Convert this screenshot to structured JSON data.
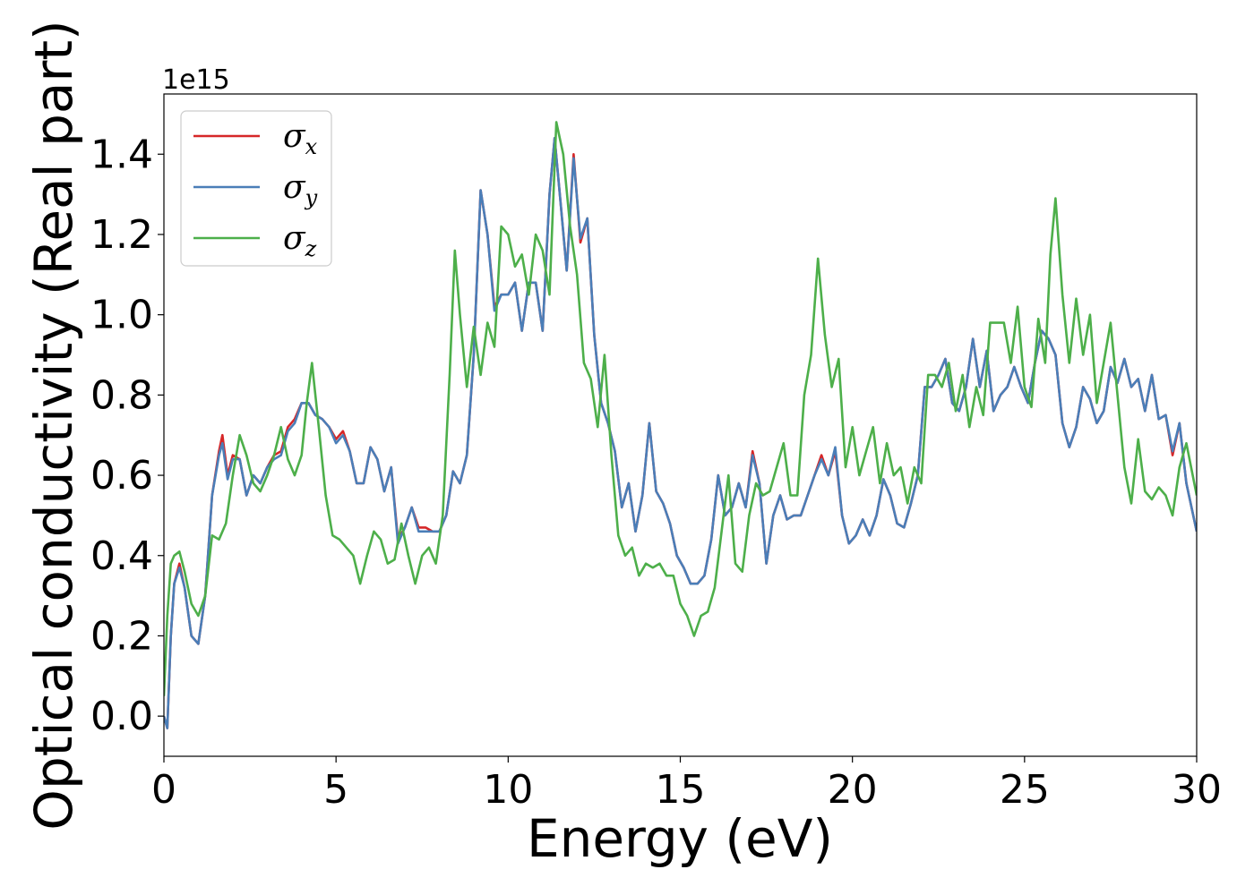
{
  "chart_data": {
    "type": "line",
    "title": "",
    "xlabel": "Energy (eV)",
    "ylabel": "Optical conductivity (Real part)",
    "y_offset_label": "1e15",
    "xlim": [
      0,
      30
    ],
    "ylim": [
      -0.1,
      1.55
    ],
    "x_ticks": [
      0,
      5,
      10,
      15,
      20,
      25,
      30
    ],
    "x_tick_labels": [
      "0",
      "5",
      "10",
      "15",
      "20",
      "25",
      "30"
    ],
    "y_ticks": [
      0.0,
      0.2,
      0.4,
      0.6,
      0.8,
      1.0,
      1.2,
      1.4
    ],
    "y_tick_labels": [
      "0.0",
      "0.2",
      "0.4",
      "0.6",
      "0.8",
      "1.0",
      "1.2",
      "1.4"
    ],
    "grid": false,
    "legend_position": "top-left",
    "series": [
      {
        "name": "σ",
        "subscript": "x",
        "color": "#d62728",
        "x": [
          0,
          0.1,
          0.2,
          0.3,
          0.45,
          0.6,
          0.8,
          1.0,
          1.2,
          1.4,
          1.6,
          1.7,
          1.85,
          2.0,
          2.2,
          2.4,
          2.6,
          2.8,
          3.0,
          3.2,
          3.4,
          3.6,
          3.8,
          4.0,
          4.2,
          4.4,
          4.6,
          4.8,
          5.0,
          5.2,
          5.4,
          5.6,
          5.8,
          6.0,
          6.2,
          6.4,
          6.6,
          6.8,
          7.0,
          7.2,
          7.4,
          7.6,
          7.8,
          8.0,
          8.2,
          8.4,
          8.6,
          8.8,
          9.0,
          9.2,
          9.4,
          9.6,
          9.8,
          10.0,
          10.2,
          10.4,
          10.6,
          10.8,
          11.0,
          11.2,
          11.35,
          11.5,
          11.7,
          11.9,
          12.1,
          12.3,
          12.5,
          12.7,
          12.9,
          13.1,
          13.3,
          13.5,
          13.7,
          13.9,
          14.1,
          14.3,
          14.5,
          14.7,
          14.9,
          15.1,
          15.3,
          15.5,
          15.7,
          15.9,
          16.1,
          16.3,
          16.5,
          16.7,
          16.9,
          17.1,
          17.3,
          17.5,
          17.7,
          17.9,
          18.1,
          18.3,
          18.5,
          18.7,
          18.9,
          19.1,
          19.3,
          19.5,
          19.7,
          19.9,
          20.1,
          20.3,
          20.5,
          20.7,
          20.9,
          21.1,
          21.3,
          21.5,
          21.7,
          21.9,
          22.1,
          22.3,
          22.5,
          22.7,
          22.9,
          23.1,
          23.3,
          23.5,
          23.7,
          23.9,
          24.1,
          24.3,
          24.5,
          24.7,
          24.9,
          25.1,
          25.3,
          25.5,
          25.7,
          25.9,
          26.1,
          26.3,
          26.5,
          26.7,
          26.9,
          27.1,
          27.3,
          27.5,
          27.7,
          27.9,
          28.1,
          28.3,
          28.5,
          28.7,
          28.9,
          29.1,
          29.3,
          29.5,
          29.7,
          30.0
        ],
        "y": [
          0,
          -0.03,
          0.2,
          0.33,
          0.38,
          0.32,
          0.2,
          0.18,
          0.3,
          0.55,
          0.66,
          0.7,
          0.6,
          0.65,
          0.64,
          0.55,
          0.6,
          0.58,
          0.62,
          0.65,
          0.66,
          0.72,
          0.74,
          0.78,
          0.78,
          0.75,
          0.74,
          0.72,
          0.69,
          0.71,
          0.66,
          0.58,
          0.58,
          0.67,
          0.64,
          0.56,
          0.62,
          0.44,
          0.47,
          0.52,
          0.47,
          0.47,
          0.46,
          0.46,
          0.5,
          0.61,
          0.58,
          0.65,
          0.9,
          1.31,
          1.2,
          1.02,
          1.05,
          1.05,
          1.08,
          0.96,
          1.08,
          1.08,
          0.96,
          1.3,
          1.44,
          1.3,
          1.11,
          1.4,
          1.18,
          1.24,
          0.95,
          0.78,
          0.73,
          0.66,
          0.52,
          0.58,
          0.46,
          0.55,
          0.73,
          0.56,
          0.53,
          0.48,
          0.4,
          0.37,
          0.33,
          0.33,
          0.35,
          0.44,
          0.6,
          0.5,
          0.52,
          0.58,
          0.52,
          0.66,
          0.58,
          0.38,
          0.5,
          0.55,
          0.49,
          0.5,
          0.5,
          0.55,
          0.6,
          0.65,
          0.6,
          0.66,
          0.5,
          0.43,
          0.45,
          0.49,
          0.45,
          0.5,
          0.59,
          0.55,
          0.48,
          0.47,
          0.53,
          0.6,
          0.82,
          0.82,
          0.85,
          0.89,
          0.78,
          0.76,
          0.82,
          0.94,
          0.82,
          0.91,
          0.76,
          0.8,
          0.82,
          0.87,
          0.82,
          0.78,
          0.88,
          0.96,
          0.94,
          0.9,
          0.73,
          0.67,
          0.72,
          0.82,
          0.79,
          0.73,
          0.76,
          0.87,
          0.83,
          0.89,
          0.82,
          0.84,
          0.76,
          0.85,
          0.74,
          0.75,
          0.65,
          0.73,
          0.58,
          0.46
        ]
      },
      {
        "name": "σ",
        "subscript": "y",
        "color": "#4a7eb8",
        "x": [
          0,
          0.1,
          0.2,
          0.3,
          0.45,
          0.6,
          0.8,
          1.0,
          1.2,
          1.4,
          1.6,
          1.7,
          1.85,
          2.0,
          2.2,
          2.4,
          2.6,
          2.8,
          3.0,
          3.2,
          3.4,
          3.6,
          3.8,
          4.0,
          4.2,
          4.4,
          4.6,
          4.8,
          5.0,
          5.2,
          5.4,
          5.6,
          5.8,
          6.0,
          6.2,
          6.4,
          6.6,
          6.8,
          7.0,
          7.2,
          7.4,
          7.6,
          7.8,
          8.0,
          8.2,
          8.4,
          8.6,
          8.8,
          9.0,
          9.2,
          9.4,
          9.6,
          9.8,
          10.0,
          10.2,
          10.4,
          10.6,
          10.8,
          11.0,
          11.2,
          11.35,
          11.5,
          11.7,
          11.9,
          12.1,
          12.3,
          12.5,
          12.7,
          12.9,
          13.1,
          13.3,
          13.5,
          13.7,
          13.9,
          14.1,
          14.3,
          14.5,
          14.7,
          14.9,
          15.1,
          15.3,
          15.5,
          15.7,
          15.9,
          16.1,
          16.3,
          16.5,
          16.7,
          16.9,
          17.1,
          17.3,
          17.5,
          17.7,
          17.9,
          18.1,
          18.3,
          18.5,
          18.7,
          18.9,
          19.1,
          19.3,
          19.5,
          19.7,
          19.9,
          20.1,
          20.3,
          20.5,
          20.7,
          20.9,
          21.1,
          21.3,
          21.5,
          21.7,
          21.9,
          22.1,
          22.3,
          22.5,
          22.7,
          22.9,
          23.1,
          23.3,
          23.5,
          23.7,
          23.9,
          24.1,
          24.3,
          24.5,
          24.7,
          24.9,
          25.1,
          25.3,
          25.5,
          25.7,
          25.9,
          26.1,
          26.3,
          26.5,
          26.7,
          26.9,
          27.1,
          27.3,
          27.5,
          27.7,
          27.9,
          28.1,
          28.3,
          28.5,
          28.7,
          28.9,
          29.1,
          29.3,
          29.5,
          29.7,
          30.0
        ],
        "y": [
          0,
          -0.03,
          0.2,
          0.33,
          0.37,
          0.32,
          0.2,
          0.18,
          0.3,
          0.55,
          0.65,
          0.68,
          0.59,
          0.64,
          0.64,
          0.55,
          0.6,
          0.58,
          0.62,
          0.64,
          0.65,
          0.71,
          0.73,
          0.78,
          0.78,
          0.75,
          0.74,
          0.72,
          0.68,
          0.7,
          0.66,
          0.58,
          0.58,
          0.67,
          0.64,
          0.56,
          0.62,
          0.43,
          0.47,
          0.52,
          0.46,
          0.46,
          0.46,
          0.46,
          0.5,
          0.61,
          0.58,
          0.65,
          0.9,
          1.31,
          1.2,
          1.01,
          1.05,
          1.05,
          1.08,
          0.96,
          1.08,
          1.08,
          0.96,
          1.3,
          1.44,
          1.3,
          1.11,
          1.39,
          1.19,
          1.24,
          0.95,
          0.78,
          0.73,
          0.66,
          0.52,
          0.58,
          0.46,
          0.55,
          0.73,
          0.56,
          0.53,
          0.48,
          0.4,
          0.37,
          0.33,
          0.33,
          0.35,
          0.44,
          0.6,
          0.5,
          0.52,
          0.58,
          0.52,
          0.65,
          0.58,
          0.38,
          0.5,
          0.55,
          0.49,
          0.5,
          0.5,
          0.55,
          0.6,
          0.64,
          0.6,
          0.67,
          0.5,
          0.43,
          0.45,
          0.49,
          0.45,
          0.5,
          0.59,
          0.55,
          0.48,
          0.47,
          0.53,
          0.6,
          0.82,
          0.82,
          0.85,
          0.89,
          0.78,
          0.76,
          0.82,
          0.94,
          0.82,
          0.91,
          0.76,
          0.8,
          0.82,
          0.87,
          0.82,
          0.78,
          0.88,
          0.96,
          0.94,
          0.9,
          0.73,
          0.67,
          0.72,
          0.82,
          0.79,
          0.73,
          0.76,
          0.87,
          0.83,
          0.89,
          0.82,
          0.84,
          0.76,
          0.85,
          0.74,
          0.75,
          0.66,
          0.73,
          0.58,
          0.46
        ]
      },
      {
        "name": "σ",
        "subscript": "z",
        "color": "#4daf4a",
        "x": [
          0,
          0.1,
          0.2,
          0.3,
          0.45,
          0.6,
          0.8,
          1.0,
          1.2,
          1.4,
          1.6,
          1.8,
          2.0,
          2.2,
          2.4,
          2.6,
          2.8,
          3.0,
          3.2,
          3.4,
          3.6,
          3.8,
          4.0,
          4.15,
          4.3,
          4.5,
          4.7,
          4.9,
          5.1,
          5.3,
          5.5,
          5.7,
          5.9,
          6.1,
          6.3,
          6.5,
          6.7,
          6.9,
          7.1,
          7.3,
          7.5,
          7.7,
          7.9,
          8.1,
          8.3,
          8.45,
          8.6,
          8.8,
          9.0,
          9.2,
          9.4,
          9.6,
          9.8,
          10.0,
          10.2,
          10.4,
          10.6,
          10.8,
          11.0,
          11.2,
          11.4,
          11.6,
          11.8,
          12.0,
          12.2,
          12.4,
          12.6,
          12.8,
          13.0,
          13.2,
          13.4,
          13.6,
          13.8,
          14.0,
          14.2,
          14.4,
          14.6,
          14.8,
          15.0,
          15.2,
          15.4,
          15.6,
          15.8,
          16.0,
          16.2,
          16.4,
          16.6,
          16.8,
          17.0,
          17.2,
          17.4,
          17.6,
          17.8,
          18.0,
          18.2,
          18.4,
          18.6,
          18.8,
          19.0,
          19.2,
          19.4,
          19.6,
          19.8,
          20.0,
          20.2,
          20.4,
          20.6,
          20.8,
          21.0,
          21.2,
          21.4,
          21.6,
          21.8,
          22.0,
          22.2,
          22.4,
          22.6,
          22.8,
          23.0,
          23.2,
          23.4,
          23.6,
          23.8,
          24.0,
          24.2,
          24.4,
          24.6,
          24.8,
          25.0,
          25.2,
          25.4,
          25.6,
          25.75,
          25.9,
          26.1,
          26.3,
          26.5,
          26.7,
          26.9,
          27.1,
          27.3,
          27.5,
          27.7,
          27.9,
          28.1,
          28.3,
          28.5,
          28.7,
          28.9,
          29.1,
          29.3,
          29.5,
          29.7,
          30.0
        ],
        "y": [
          0.05,
          0.25,
          0.38,
          0.4,
          0.41,
          0.36,
          0.28,
          0.25,
          0.3,
          0.45,
          0.44,
          0.48,
          0.6,
          0.7,
          0.65,
          0.58,
          0.56,
          0.6,
          0.65,
          0.72,
          0.64,
          0.6,
          0.65,
          0.78,
          0.88,
          0.72,
          0.55,
          0.45,
          0.44,
          0.42,
          0.4,
          0.33,
          0.4,
          0.46,
          0.44,
          0.38,
          0.39,
          0.48,
          0.4,
          0.33,
          0.4,
          0.42,
          0.38,
          0.5,
          0.85,
          1.16,
          1.0,
          0.82,
          0.97,
          0.85,
          0.98,
          0.92,
          1.22,
          1.2,
          1.12,
          1.15,
          1.05,
          1.2,
          1.16,
          1.05,
          1.48,
          1.4,
          1.22,
          1.1,
          0.88,
          0.84,
          0.72,
          0.9,
          0.65,
          0.45,
          0.4,
          0.42,
          0.35,
          0.38,
          0.37,
          0.38,
          0.35,
          0.35,
          0.28,
          0.25,
          0.2,
          0.25,
          0.26,
          0.32,
          0.46,
          0.6,
          0.38,
          0.36,
          0.5,
          0.58,
          0.55,
          0.56,
          0.62,
          0.68,
          0.55,
          0.55,
          0.8,
          0.9,
          1.14,
          0.95,
          0.82,
          0.89,
          0.62,
          0.72,
          0.6,
          0.66,
          0.72,
          0.58,
          0.68,
          0.6,
          0.62,
          0.53,
          0.62,
          0.58,
          0.85,
          0.85,
          0.82,
          0.88,
          0.76,
          0.85,
          0.72,
          0.82,
          0.75,
          0.98,
          0.98,
          0.98,
          0.88,
          1.02,
          0.82,
          0.77,
          0.99,
          0.88,
          1.15,
          1.29,
          1.05,
          0.88,
          1.04,
          0.9,
          1.0,
          0.78,
          0.88,
          0.98,
          0.8,
          0.62,
          0.53,
          0.69,
          0.56,
          0.54,
          0.57,
          0.55,
          0.5,
          0.62,
          0.68,
          0.55
        ]
      }
    ]
  }
}
